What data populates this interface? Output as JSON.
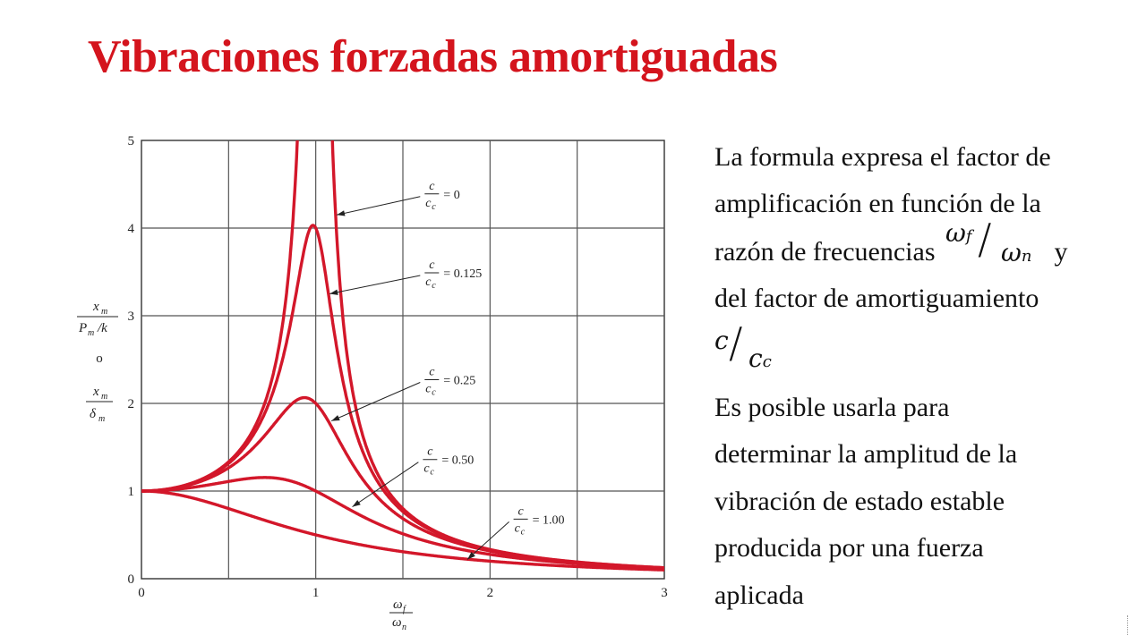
{
  "slide": {
    "title": "Vibraciones forzadas amortiguadas",
    "body": {
      "line1": "La formula expresa el factor de",
      "line2": "amplificación en función de la",
      "line3_prefix": "razón de frecuencias",
      "ratio_freq_num": "ω",
      "ratio_freq_num_sub": "f",
      "ratio_freq_slash": "/",
      "ratio_freq_den": "ω",
      "ratio_freq_den_sub": "n",
      "line3_suffix": "y",
      "line4": "del factor de amortiguamiento",
      "ratio_damp_num": "c",
      "ratio_damp_slash": "/",
      "ratio_damp_den": "c",
      "ratio_damp_den_sub": "c",
      "line6": "Es posible usarla para",
      "line7": "determinar la amplitud de la",
      "line8": "vibración de estado estable",
      "line9": "producida por una fuerza",
      "line10": "aplicada"
    }
  },
  "chart_data": {
    "type": "line",
    "title": "",
    "xlabel": "ωf / ωn",
    "ylabel": "xm / (Pm/k)  o  xm / δm",
    "ylabel_parts": {
      "top_num": "x",
      "top_num_sub": "m",
      "top_den": "P",
      "top_den_sub": "m",
      "top_den_tail": "/k",
      "or": "o",
      "bot_num": "x",
      "bot_num_sub": "m",
      "bot_den": "δ",
      "bot_den_sub": "m"
    },
    "xlabel_parts": {
      "num": "ω",
      "num_sub": "f",
      "den": "ω",
      "den_sub": "n"
    },
    "xlim": [
      0,
      3
    ],
    "ylim": [
      0,
      5
    ],
    "x_ticks": [
      "0",
      "1",
      "2",
      "3"
    ],
    "y_ticks": [
      "0",
      "1",
      "2",
      "3",
      "4",
      "5"
    ],
    "grid": true,
    "grid_step_x": 0.5,
    "grid_step_y": 1,
    "line_color": "#d3172a",
    "series": [
      {
        "name": "c/cc = 0",
        "zeta": 0,
        "label_value": "0"
      },
      {
        "name": "c/cc = 0.125",
        "zeta": 0.125,
        "label_value": "0.125"
      },
      {
        "name": "c/cc = 0.25",
        "zeta": 0.25,
        "label_value": "0.25"
      },
      {
        "name": "c/cc = 0.50",
        "zeta": 0.5,
        "label_value": "0.50"
      },
      {
        "name": "c/cc = 1.00",
        "zeta": 1.0,
        "label_value": "1.00"
      }
    ],
    "annotations": [
      {
        "series": 0,
        "arrow_to": [
          1.12,
          4.15
        ],
        "label_at": [
          1.63,
          4.38
        ]
      },
      {
        "series": 1,
        "arrow_to": [
          1.08,
          3.25
        ],
        "label_at": [
          1.63,
          3.48
        ]
      },
      {
        "series": 2,
        "arrow_to": [
          1.09,
          1.8
        ],
        "label_at": [
          1.63,
          2.26
        ]
      },
      {
        "series": 3,
        "arrow_to": [
          1.21,
          0.82
        ],
        "label_at": [
          1.62,
          1.35
        ]
      },
      {
        "series": 4,
        "arrow_to": [
          1.87,
          0.22
        ],
        "label_at": [
          2.14,
          0.67
        ]
      }
    ],
    "label_text": {
      "num": "c",
      "den": "c",
      "den_sub": "c",
      "eq": "="
    }
  }
}
